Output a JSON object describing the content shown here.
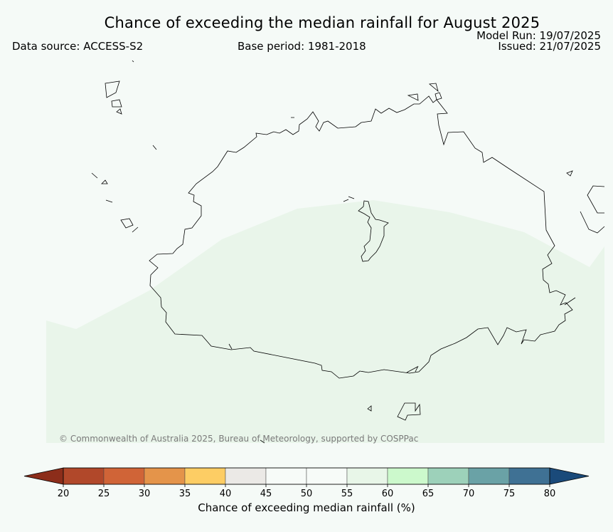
{
  "header": {
    "title": "Chance of exceeding the median rainfall for August 2025",
    "data_source": "Data source: ACCESS-S2",
    "base_period": "Base period: 1981-2018",
    "model_run": "Model Run: 19/07/2025",
    "issued": "Issued: 21/07/2025"
  },
  "map": {
    "copyright": "© Commonwealth of Australia 2025, Bureau of Meteorology, supported by COSPPac",
    "background_color": "#f5faf7",
    "shaded_region_color": "#e9f5ea",
    "coastline_color": "#000000"
  },
  "colorbar": {
    "label": "Chance of exceeding median rainfall (%)",
    "ticks": [
      "20",
      "25",
      "30",
      "35",
      "40",
      "45",
      "50",
      "55",
      "60",
      "65",
      "70",
      "75",
      "80"
    ],
    "low_extension_color": "#8c2d1a",
    "high_extension_color": "#1a4a7a",
    "bins": [
      {
        "range": "20-25",
        "color": "#b1482a"
      },
      {
        "range": "25-30",
        "color": "#d06437"
      },
      {
        "range": "30-35",
        "color": "#e4944a"
      },
      {
        "range": "35-40",
        "color": "#fdcd64"
      },
      {
        "range": "40-45",
        "color": "#ebe9e6"
      },
      {
        "range": "45-50",
        "color": "#f7fbf8"
      },
      {
        "range": "50-55",
        "color": "#f7fbf8"
      },
      {
        "range": "55-60",
        "color": "#e8f6e8"
      },
      {
        "range": "60-65",
        "color": "#ccf9cc"
      },
      {
        "range": "65-70",
        "color": "#9dd1ba"
      },
      {
        "range": "70-75",
        "color": "#6aa2a6"
      },
      {
        "range": "75-80",
        "color": "#3f7194"
      }
    ]
  }
}
